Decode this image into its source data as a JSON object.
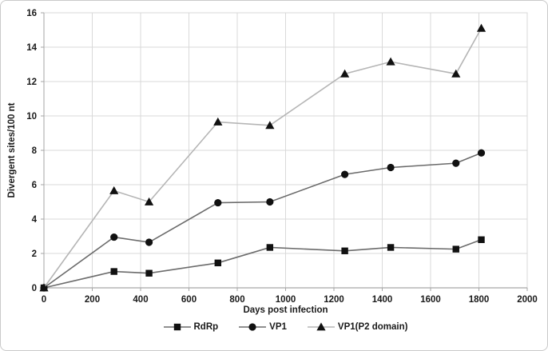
{
  "figure": {
    "background": "#ffffff",
    "border_color": "#c9c9c9"
  },
  "chart_data": {
    "type": "line",
    "title": "",
    "xlabel": "Days post infection",
    "ylabel": "Divergent sites/100 nt",
    "xlim": [
      0,
      2000
    ],
    "ylim": [
      0,
      16
    ],
    "x_ticks": [
      0,
      200,
      400,
      600,
      800,
      1000,
      1200,
      1400,
      1600,
      1800,
      2000
    ],
    "y_ticks": [
      0,
      2,
      4,
      6,
      8,
      10,
      12,
      14,
      16
    ],
    "grid": true,
    "legend_position": "bottom",
    "x": [
      0,
      290,
      435,
      720,
      935,
      1245,
      1435,
      1705,
      1810
    ],
    "series": [
      {
        "name": "RdRp",
        "marker": "square",
        "line_color": "#6b6b6b",
        "marker_color": "#111111",
        "values": [
          0,
          0.95,
          0.85,
          1.45,
          2.35,
          2.15,
          2.35,
          2.25,
          2.8
        ]
      },
      {
        "name": "VP1",
        "marker": "circle",
        "line_color": "#6b6b6b",
        "marker_color": "#111111",
        "values": [
          0,
          2.95,
          2.65,
          4.95,
          5.0,
          6.6,
          7.0,
          7.25,
          7.85
        ]
      },
      {
        "name": "VP1(P2 domain)",
        "marker": "triangle",
        "line_color": "#b5b5b5",
        "marker_color": "#111111",
        "values": [
          0,
          5.65,
          5.0,
          9.65,
          9.45,
          12.45,
          13.15,
          12.45,
          15.1
        ]
      }
    ],
    "colors": {
      "grid": "#d9d9d9",
      "axis": "#a6a6a6",
      "text": "#1a1a1a"
    }
  }
}
